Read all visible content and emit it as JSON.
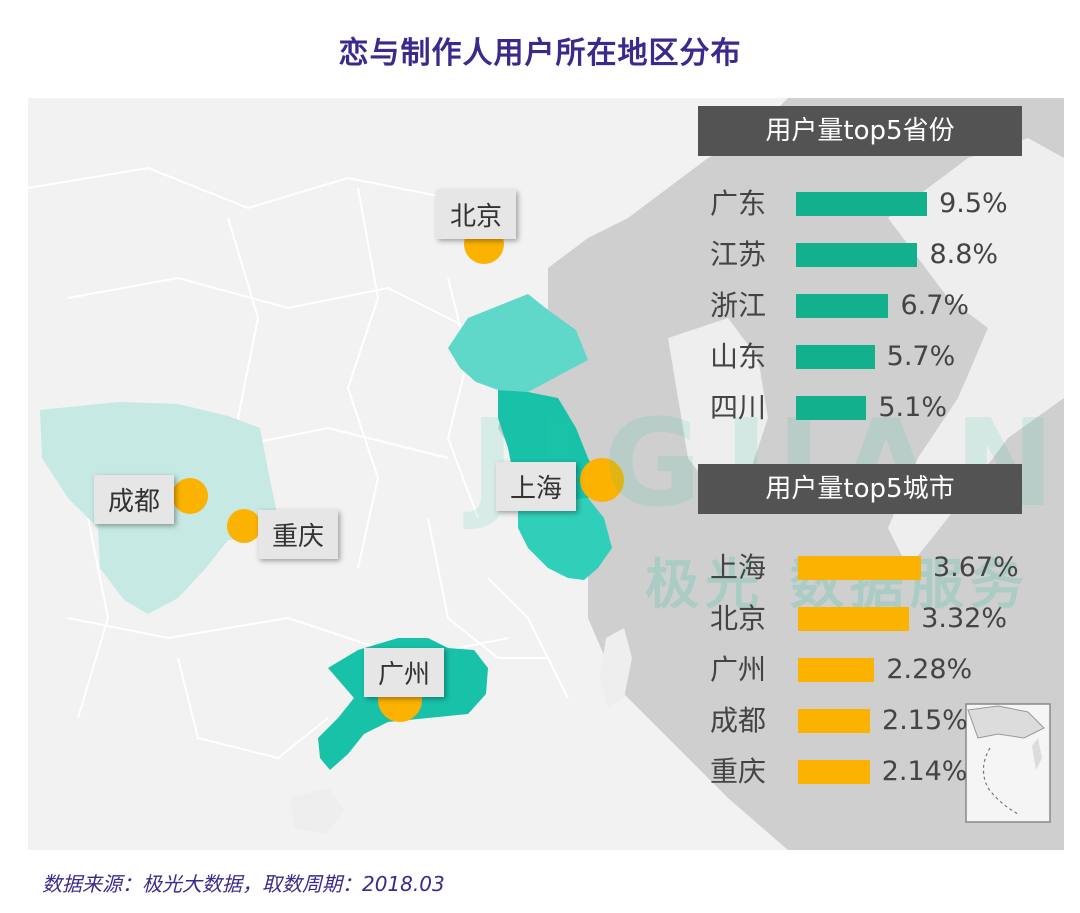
{
  "title": "恋与制作人用户所在地区分布",
  "source": "数据来源：极光大数据，取数周期：2018.03",
  "watermark": {
    "brand": "JIGUANG",
    "text": "极光 数据服务"
  },
  "colors": {
    "province_bar": "#13b08e",
    "city_bar": "#fbb200",
    "title": "#3b2a8c",
    "header_bg": "#535353"
  },
  "map_labels": {
    "beijing": "北京",
    "shanghai": "上海",
    "chengdu": "成都",
    "chongqing": "重庆",
    "guangzhou": "广州"
  },
  "chart_data": [
    {
      "type": "bar",
      "title": "用户量top5省份",
      "categories": [
        "广东",
        "江苏",
        "浙江",
        "山东",
        "四川"
      ],
      "values": [
        9.5,
        8.8,
        6.7,
        5.7,
        5.1
      ],
      "value_labels": [
        "9.5%",
        "8.8%",
        "6.7%",
        "5.7%",
        "5.1%"
      ],
      "unit": "%",
      "color": "#13b08e"
    },
    {
      "type": "bar",
      "title": "用户量top5城市",
      "categories": [
        "上海",
        "北京",
        "广州",
        "成都",
        "重庆"
      ],
      "values": [
        3.67,
        3.32,
        2.28,
        2.15,
        2.14
      ],
      "value_labels": [
        "3.67%",
        "3.32%",
        "2.28%",
        "2.15%",
        "2.14%"
      ],
      "unit": "%",
      "color": "#fbb200"
    }
  ]
}
